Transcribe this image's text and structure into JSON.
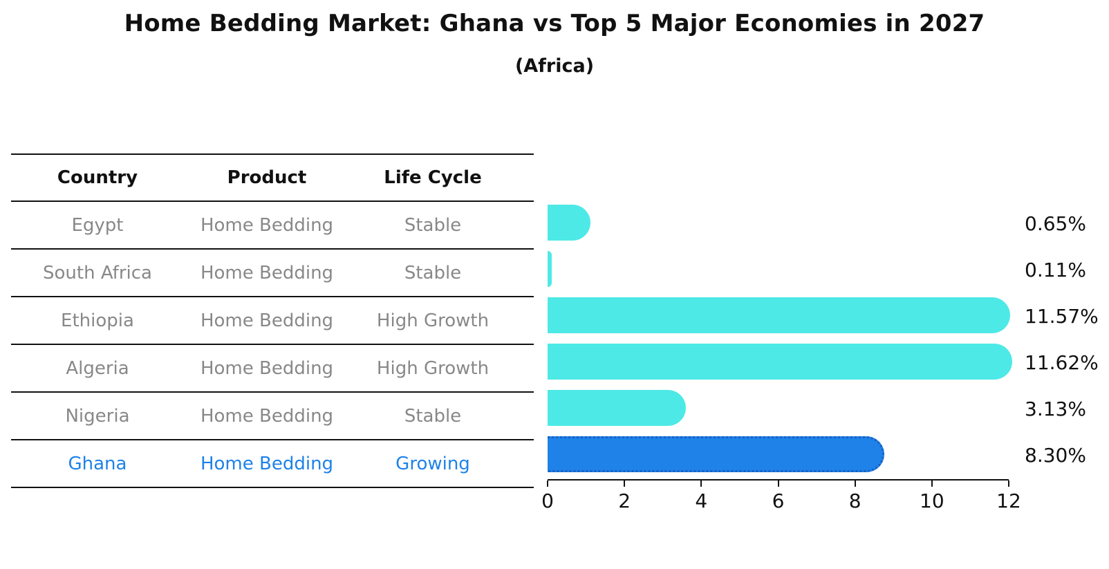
{
  "title": "Home Bedding Market: Ghana vs Top 5 Major Economies in 2027",
  "subtitle": "(Africa)",
  "table": {
    "headers": [
      "Country",
      "Product",
      "Life Cycle"
    ],
    "rows": [
      {
        "country": "Egypt",
        "product": "Home Bedding",
        "life_cycle": "Stable",
        "highlighted": false
      },
      {
        "country": "South Africa",
        "product": "Home Bedding",
        "life_cycle": "Stable",
        "highlighted": false
      },
      {
        "country": "Ethiopia",
        "product": "Home Bedding",
        "life_cycle": "High Growth",
        "highlighted": false
      },
      {
        "country": "Algeria",
        "product": "Home Bedding",
        "life_cycle": "High Growth",
        "highlighted": false
      },
      {
        "country": "Nigeria",
        "product": "Home Bedding",
        "life_cycle": "Stable",
        "highlighted": false
      },
      {
        "country": "Ghana",
        "product": "Home Bedding",
        "life_cycle": "Growing",
        "highlighted": true
      }
    ]
  },
  "chart_data": {
    "type": "bar",
    "orientation": "horizontal",
    "title": "Home Bedding Market: Ghana vs Top 5 Major Economies in 2027",
    "subtitle": "(Africa)",
    "categories": [
      "Egypt",
      "South Africa",
      "Ethiopia",
      "Algeria",
      "Nigeria",
      "Ghana"
    ],
    "values": [
      0.65,
      0.11,
      11.57,
      11.62,
      3.13,
      8.3
    ],
    "value_labels": [
      "0.65%",
      "0.11%",
      "11.57%",
      "11.62%",
      "3.13%",
      "8.30%"
    ],
    "xlabel": "",
    "ylabel": "",
    "xlim": [
      0,
      12
    ],
    "x_ticks": [
      0,
      2,
      4,
      6,
      8,
      10,
      12
    ],
    "grid": false,
    "legend": "none",
    "highlight_index": 5
  },
  "colors": {
    "bar": "#4DE9E6",
    "highlight_bar": "#1E82E8",
    "highlight_border": "#1A5FC4",
    "accent_text": "#1E82E8",
    "muted_text": "#888888",
    "axis": "#111111",
    "background": "#ffffff"
  }
}
